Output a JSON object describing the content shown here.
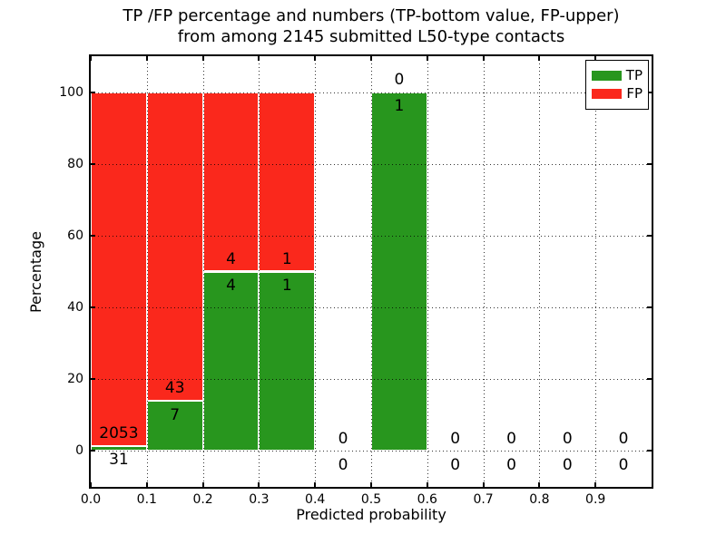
{
  "title": {
    "line1": "TP /FP percentage and numbers (TP-bottom value, FP-upper)",
    "line2": "from among 2145 submitted L50-type contacts"
  },
  "axes": {
    "xlabel": "Predicted probability",
    "ylabel": "Percentage"
  },
  "legend": {
    "items": [
      {
        "label": "TP",
        "color": "#28961e"
      },
      {
        "label": "FP",
        "color": "#fa281c"
      }
    ]
  },
  "chart_data": {
    "type": "bar",
    "stacked": true,
    "title": "TP /FP percentage and numbers (TP-bottom value, FP-upper) from among 2145 submitted L50-type contacts",
    "total_submitted": 2145,
    "xlabel": "Predicted probability",
    "ylabel": "Percentage",
    "xlim": [
      0.0,
      1.0
    ],
    "ylim": [
      -10,
      110
    ],
    "grid": "dotted",
    "legend_position": "upper right",
    "bin_edges": [
      0.0,
      0.1,
      0.2,
      0.3,
      0.4,
      0.5,
      0.6,
      0.7,
      0.8,
      0.9,
      1.0
    ],
    "xticks": [
      {
        "label": "0.0",
        "value": 0.0
      },
      {
        "label": "0.1",
        "value": 0.1
      },
      {
        "label": "0.2",
        "value": 0.2
      },
      {
        "label": "0.3",
        "value": 0.3
      },
      {
        "label": "0.4",
        "value": 0.4
      },
      {
        "label": "0.5",
        "value": 0.5
      },
      {
        "label": "0.6",
        "value": 0.6
      },
      {
        "label": "0.7",
        "value": 0.7
      },
      {
        "label": "0.8",
        "value": 0.8
      },
      {
        "label": "0.9",
        "value": 0.9
      }
    ],
    "yticks": [
      {
        "label": "0",
        "value": 0
      },
      {
        "label": "20",
        "value": 20
      },
      {
        "label": "40",
        "value": 40
      },
      {
        "label": "60",
        "value": 60
      },
      {
        "label": "80",
        "value": 80
      },
      {
        "label": "100",
        "value": 100
      }
    ],
    "series": [
      {
        "name": "TP",
        "color": "#28961e",
        "counts": [
          31,
          7,
          4,
          1,
          0,
          1,
          0,
          0,
          0,
          0
        ],
        "percent": [
          1.49,
          14,
          50,
          50,
          0,
          100,
          0,
          0,
          0,
          0
        ]
      },
      {
        "name": "FP",
        "color": "#fa281c",
        "counts": [
          2053,
          43,
          4,
          1,
          0,
          0,
          0,
          0,
          0,
          0
        ],
        "percent": [
          98.51,
          86,
          50,
          50,
          0,
          0,
          0,
          0,
          0,
          0
        ]
      }
    ]
  }
}
